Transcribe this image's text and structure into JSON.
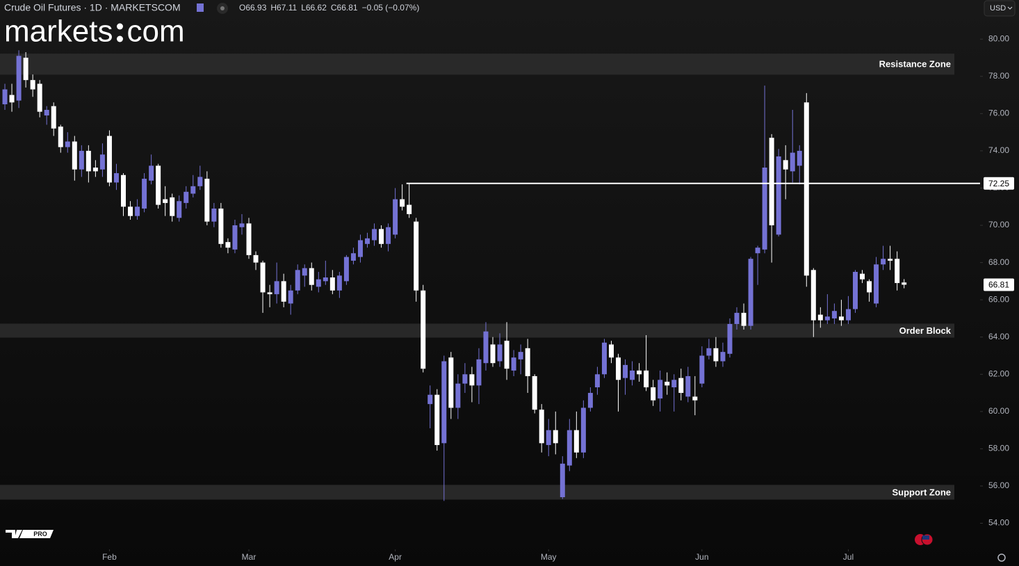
{
  "chart_data": {
    "type": "candlestick",
    "title": "Crude Oil Futures · 1D · MARKETSCOM",
    "header_values": [
      "O66.93",
      "H67.11",
      "L66.62",
      "C66.81",
      "−0.05 (−0.07%)"
    ],
    "logo": [
      "markets",
      "com"
    ],
    "currency": "USD",
    "tv_badge": "PRO",
    "up_color": "#7472d4",
    "down_color": "#ffffff",
    "open": [
      76.5,
      77.0,
      76.7,
      79.0,
      77.8,
      77.6,
      75.9,
      76.4,
      75.3,
      74.2,
      74.5,
      73.0,
      74.0,
      73.1,
      73.0,
      74.8,
      72.3,
      72.7,
      71.0,
      70.5,
      70.9,
      72.4,
      73.2,
      71.4,
      71.5,
      70.4,
      71.2,
      71.7,
      72.1,
      72.5,
      70.2,
      70.9,
      69.1,
      68.7,
      69.9,
      70.1,
      68.4,
      68.0,
      66.4,
      66.3,
      67.0,
      65.8,
      66.5,
      67.3,
      67.7,
      66.7,
      67.0,
      67.2,
      66.5,
      67.0,
      68.1,
      68.3,
      69.0,
      69.2,
      69.8,
      69.0,
      69.5,
      71.4,
      71.1,
      70.2,
      66.5,
      60.4,
      60.9,
      58.3,
      62.9,
      60.2,
      61.5,
      62.0,
      61.4,
      62.6,
      63.6,
      62.7,
      63.8,
      62.2,
      62.8,
      63.4,
      61.9,
      60.1,
      58.2,
      59.0,
      55.4,
      57.1,
      59.0,
      57.8,
      60.2,
      61.3,
      62.0,
      63.6,
      62.9,
      61.8,
      61.7,
      62.2,
      62.2,
      61.3,
      60.7,
      61.6,
      61.3,
      61.8,
      60.8,
      60.8,
      61.5,
      63.0,
      63.4,
      62.7,
      63.1,
      64.7,
      65.3,
      64.6,
      68.5,
      68.7,
      74.7,
      69.5,
      73.5,
      72.9,
      73.2,
      76.6,
      67.6,
      65.2,
      64.9,
      65.0,
      65.1,
      64.9,
      65.5,
      67.4,
      67.0,
      65.8,
      67.9,
      68.2,
      68.2,
      66.93
    ],
    "high": [
      77.6,
      77.6,
      79.4,
      79.3,
      78.1,
      77.8,
      76.4,
      76.6,
      75.4,
      75.0,
      74.8,
      74.3,
      74.3,
      73.5,
      74.4,
      75.1,
      73.3,
      72.8,
      71.3,
      71.4,
      72.8,
      73.8,
      73.3,
      72.1,
      71.7,
      71.6,
      72.1,
      72.7,
      73.2,
      72.9,
      71.2,
      71.2,
      69.3,
      70.3,
      70.6,
      70.4,
      68.6,
      68.1,
      66.8,
      68.0,
      67.4,
      66.8,
      67.9,
      67.9,
      68.0,
      67.5,
      68.1,
      67.6,
      67.5,
      68.4,
      68.8,
      69.5,
      69.6,
      70.1,
      70.0,
      70.1,
      72.0,
      72.2,
      72.25,
      70.4,
      66.8,
      61.4,
      61.2,
      63.0,
      63.2,
      62.0,
      62.6,
      62.4,
      63.4,
      64.8,
      64.0,
      64.2,
      64.8,
      63.3,
      63.6,
      63.9,
      62.0,
      60.4,
      59.6,
      60.0,
      57.6,
      59.6,
      60.0,
      60.6,
      61.3,
      62.4,
      63.9,
      63.8,
      63.1,
      62.8,
      62.7,
      62.6,
      64.1,
      61.7,
      62.2,
      62.1,
      62.0,
      62.3,
      62.4,
      61.9,
      63.5,
      63.9,
      64.0,
      63.7,
      65.0,
      65.6,
      65.8,
      68.3,
      68.9,
      77.5,
      74.9,
      74.1,
      74.3,
      76.2,
      74.3,
      77.1,
      67.7,
      65.6,
      66.3,
      65.8,
      66.0,
      66.2,
      67.6,
      67.6,
      67.1,
      68.3,
      68.9,
      68.9,
      68.6,
      67.11
    ],
    "low": [
      76.2,
      76.1,
      76.3,
      77.4,
      76.9,
      75.8,
      75.4,
      74.8,
      73.9,
      73.9,
      72.4,
      72.6,
      72.3,
      72.6,
      72.6,
      72.1,
      71.9,
      70.5,
      70.3,
      70.3,
      70.7,
      72.2,
      70.9,
      70.5,
      70.2,
      70.2,
      70.9,
      71.5,
      71.9,
      70.0,
      69.9,
      68.8,
      68.5,
      68.5,
      69.5,
      68.2,
      67.6,
      65.3,
      65.6,
      65.8,
      65.6,
      65.2,
      66.3,
      66.7,
      66.5,
      66.4,
      66.8,
      66.3,
      66.1,
      66.8,
      67.9,
      68.0,
      68.8,
      68.9,
      68.8,
      68.6,
      69.3,
      70.8,
      70.4,
      65.9,
      62.1,
      59.1,
      57.9,
      55.2,
      59.6,
      59.6,
      61.0,
      60.5,
      60.4,
      62.2,
      62.4,
      62.4,
      61.7,
      61.9,
      62.0,
      61.0,
      59.9,
      57.8,
      57.6,
      57.7,
      55.3,
      56.8,
      57.5,
      57.5,
      60.0,
      60.9,
      61.8,
      62.6,
      60.0,
      60.9,
      61.4,
      61.6,
      61.1,
      60.3,
      60.0,
      60.9,
      60.0,
      60.6,
      60.5,
      59.8,
      61.3,
      62.8,
      62.4,
      62.4,
      62.9,
      64.4,
      64.4,
      64.4,
      66.8,
      68.5,
      68.0,
      69.4,
      71.4,
      72.3,
      72.2,
      66.7,
      64.0,
      64.5,
      64.7,
      64.7,
      64.6,
      64.7,
      65.3,
      66.9,
      65.9,
      65.6,
      67.6,
      67.6,
      66.5,
      66.62
    ],
    "close": [
      77.3,
      76.6,
      79.1,
      77.8,
      77.3,
      76.1,
      76.2,
      75.2,
      74.2,
      74.5,
      73.0,
      74.0,
      72.9,
      72.9,
      73.8,
      72.3,
      72.8,
      71.0,
      70.5,
      71.0,
      72.5,
      73.2,
      71.1,
      71.2,
      70.5,
      71.3,
      71.8,
      72.1,
      72.6,
      70.2,
      70.9,
      69.0,
      68.8,
      70.0,
      70.1,
      68.4,
      68.0,
      66.4,
      66.3,
      67.0,
      65.9,
      66.5,
      67.6,
      67.7,
      66.8,
      67.1,
      67.2,
      66.5,
      67.3,
      68.3,
      68.5,
      69.2,
      69.3,
      69.8,
      69.0,
      69.9,
      71.4,
      71.0,
      70.6,
      66.5,
      62.3,
      60.9,
      58.2,
      62.7,
      60.2,
      61.5,
      62.0,
      61.4,
      62.8,
      64.3,
      62.6,
      63.6,
      62.3,
      62.9,
      63.2,
      61.9,
      60.1,
      58.3,
      59.0,
      58.3,
      57.2,
      59.0,
      57.8,
      60.2,
      61.0,
      62.0,
      63.7,
      62.9,
      61.7,
      62.5,
      62.2,
      62.0,
      61.3,
      60.6,
      61.7,
      61.4,
      61.7,
      61.0,
      61.9,
      60.6,
      63.0,
      63.4,
      62.7,
      63.2,
      64.7,
      65.3,
      64.6,
      68.2,
      68.8,
      73.1,
      70.0,
      73.7,
      73.0,
      73.9,
      74.0,
      67.3,
      64.9,
      64.9,
      65.1,
      65.4,
      64.9,
      65.5,
      67.5,
      67.1,
      66.4,
      67.9,
      68.2,
      68.1,
      66.9,
      66.81
    ],
    "xlim": [
      -0.7,
      139.9
    ],
    "xticks": [
      {
        "value": 15,
        "label": "Feb"
      },
      {
        "value": 35,
        "label": "Mar"
      },
      {
        "value": 56,
        "label": "Apr"
      },
      {
        "value": 78,
        "label": "May"
      },
      {
        "value": 100,
        "label": "Jun"
      },
      {
        "value": 121,
        "label": "Jul"
      }
    ],
    "ylim": [
      52.6,
      82.1
    ],
    "yticks": [
      {
        "value": 54,
        "label": "54.00"
      },
      {
        "value": 56,
        "label": "56.00"
      },
      {
        "value": 58,
        "label": "58.00"
      },
      {
        "value": 60,
        "label": "60.00"
      },
      {
        "value": 62,
        "label": "62.00"
      },
      {
        "value": 64,
        "label": "64.00"
      },
      {
        "value": 66,
        "label": "66.00"
      },
      {
        "value": 68,
        "label": "68.00"
      },
      {
        "value": 70,
        "label": "70.00"
      },
      {
        "value": 72,
        "label": "72.00"
      },
      {
        "value": 74,
        "label": "74.00"
      },
      {
        "value": 76,
        "label": "76.00"
      },
      {
        "value": 78,
        "label": "78.00"
      },
      {
        "value": 80,
        "label": "80.00"
      }
    ],
    "level_line": {
      "value": 72.25,
      "start": 58
    },
    "zones": [
      {
        "name": "Resistance Zone",
        "range": [
          78.09,
          79.22
        ]
      },
      {
        "name": "Order Block",
        "range": [
          63.97,
          64.72
        ]
      },
      {
        "name": "Support Zone",
        "range": [
          55.27,
          56.06
        ]
      }
    ]
  }
}
